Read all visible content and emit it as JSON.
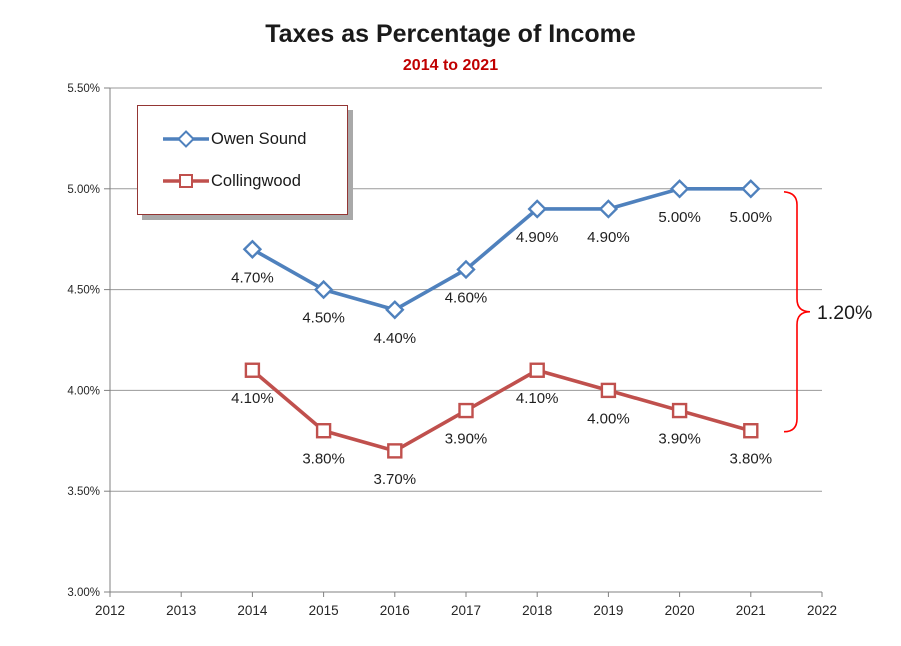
{
  "title": "Taxes as Percentage of Income",
  "subtitle": "2014 to 2021",
  "colors": {
    "title": "#1a1a1a",
    "subtitle": "#c00000",
    "owen_sound": "#4f81bd",
    "collingwood": "#c0504d",
    "annotation": "#ff0000",
    "legend_border": "#943634",
    "grid": "#9a9a9a",
    "axis": "#808080",
    "tick_text": "#262626",
    "data_label_text": "#1f1f1f"
  },
  "chart_data": {
    "type": "line",
    "title": "Taxes as Percentage of Income",
    "subtitle": "2014 to 2021",
    "x": [
      2014,
      2015,
      2016,
      2017,
      2018,
      2019,
      2020,
      2021
    ],
    "series": [
      {
        "name": "Owen Sound",
        "marker": "diamond",
        "color_key": "owen_sound",
        "values": [
          4.7,
          4.5,
          4.4,
          4.6,
          4.9,
          4.9,
          5.0,
          5.0
        ],
        "point_labels": [
          "4.70%",
          "4.50%",
          "4.40%",
          "4.60%",
          "4.90%",
          "4.90%",
          "5.00%",
          "5.00%"
        ]
      },
      {
        "name": "Collingwood",
        "marker": "square",
        "color_key": "collingwood",
        "values": [
          4.1,
          3.8,
          3.7,
          3.9,
          4.1,
          4.0,
          3.9,
          3.8
        ],
        "point_labels": [
          "4.10%",
          "3.80%",
          "3.70%",
          "3.90%",
          "4.10%",
          "4.00%",
          "3.90%",
          "3.80%"
        ]
      }
    ],
    "x_axis": {
      "min": 2012,
      "max": 2022,
      "tick_labels": [
        "2012",
        "2013",
        "2014",
        "2015",
        "2016",
        "2017",
        "2018",
        "2019",
        "2020",
        "2021",
        "2022"
      ]
    },
    "y_axis": {
      "min": 3.0,
      "max": 5.5,
      "step": 0.5,
      "tick_values": [
        3.0,
        3.5,
        4.0,
        4.5,
        5.0,
        5.5
      ],
      "tick_labels": [
        "3.00%",
        "3.50%",
        "4.00%",
        "4.50%",
        "5.00%",
        "5.50%"
      ]
    },
    "grid": true,
    "legend_position": "inside-top-left",
    "annotation": {
      "label": "1.20%",
      "year": 2021,
      "from_value": 5.0,
      "to_value": 3.8
    }
  }
}
